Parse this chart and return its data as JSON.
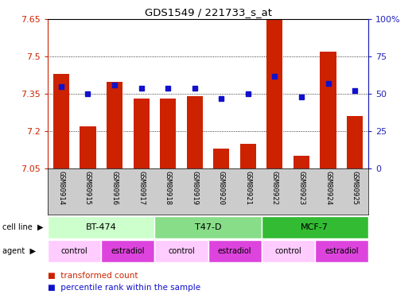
{
  "title": "GDS1549 / 221733_s_at",
  "samples": [
    "GSM80914",
    "GSM80915",
    "GSM80916",
    "GSM80917",
    "GSM80918",
    "GSM80919",
    "GSM80920",
    "GSM80921",
    "GSM80922",
    "GSM80923",
    "GSM80924",
    "GSM80925"
  ],
  "red_values": [
    7.43,
    7.22,
    7.4,
    7.33,
    7.33,
    7.34,
    7.13,
    7.15,
    7.65,
    7.1,
    7.52,
    7.26
  ],
  "blue_pct": [
    55,
    50,
    56,
    54,
    54,
    54,
    47,
    50,
    62,
    48,
    57,
    52
  ],
  "y_min": 7.05,
  "y_max": 7.65,
  "y_ticks": [
    7.05,
    7.2,
    7.35,
    7.5,
    7.65
  ],
  "y2_ticks": [
    0,
    25,
    50,
    75,
    100
  ],
  "cell_line_groups": [
    {
      "label": "BT-474",
      "start": 0,
      "end": 3
    },
    {
      "label": "T47-D",
      "start": 4,
      "end": 7
    },
    {
      "label": "MCF-7",
      "start": 8,
      "end": 11
    }
  ],
  "cell_line_colors": [
    "#ccffcc",
    "#88dd88",
    "#33bb33"
  ],
  "agent_groups": [
    {
      "label": "control",
      "start": 0,
      "end": 1
    },
    {
      "label": "estradiol",
      "start": 2,
      "end": 3
    },
    {
      "label": "control",
      "start": 4,
      "end": 5
    },
    {
      "label": "estradiol",
      "start": 6,
      "end": 7
    },
    {
      "label": "control",
      "start": 8,
      "end": 9
    },
    {
      "label": "estradiol",
      "start": 10,
      "end": 11
    }
  ],
  "control_color": "#ffccff",
  "estradiol_color": "#dd44dd",
  "bar_color": "#cc2200",
  "dot_color": "#1111cc",
  "xtick_bg": "#cccccc",
  "left_tick_color": "#cc2200",
  "right_tick_color": "#2222bb"
}
